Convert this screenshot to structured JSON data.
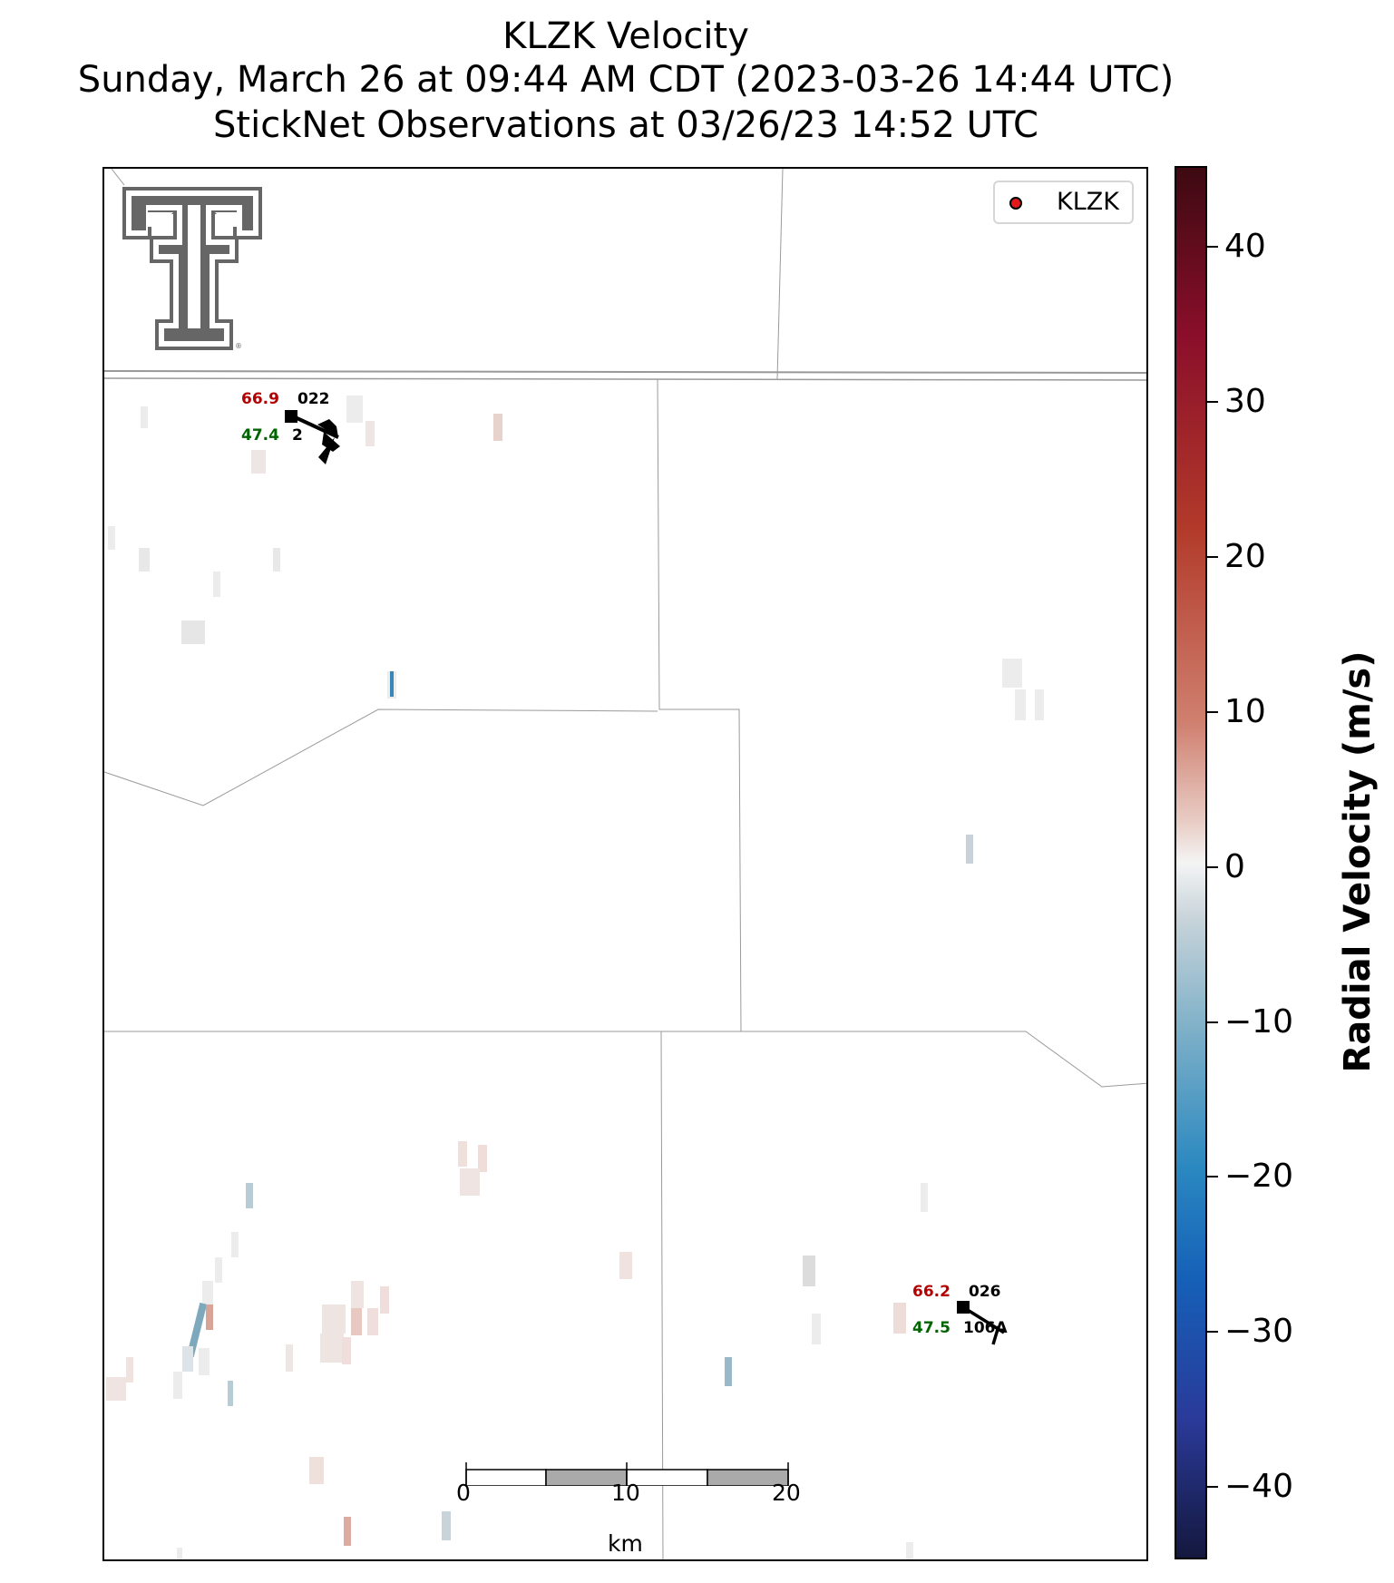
{
  "title": {
    "line1": "KLZK Velocity",
    "line2": "Sunday, March 26 at 09:44 AM CDT (2023-03-26 14:44 UTC)",
    "line3": "StickNet Observations at 03/26/23 14:52 UTC"
  },
  "legend": {
    "label": "KLZK",
    "marker_color": "#e31a1c"
  },
  "colorbar": {
    "label": "Radial Velocity (m/s)",
    "range": [
      -45,
      45
    ],
    "ticks": [
      "40",
      "30",
      "20",
      "10",
      "0",
      "−10",
      "−20",
      "−30",
      "−40"
    ]
  },
  "stations": [
    {
      "id_top": "022",
      "id_bottom": "2",
      "temperature": "66.9",
      "dewpoint": "47.4"
    },
    {
      "id_top": "026",
      "id_bottom": "106A",
      "temperature": "66.2",
      "dewpoint": "47.5"
    }
  ],
  "scale_bar": {
    "unit": "km",
    "labels": [
      "0",
      "10",
      "20"
    ]
  },
  "logo": {
    "name": "texas-tech-double-t-logo",
    "color": "#666666"
  }
}
